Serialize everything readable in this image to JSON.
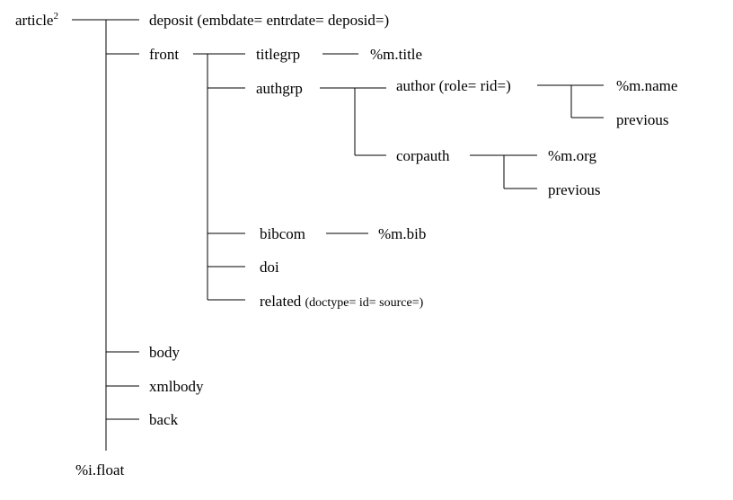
{
  "diagram": {
    "nodes": {
      "article": "article",
      "article_sup": "2",
      "deposit": "deposit (embdate= entrdate= deposid=)",
      "front": "front",
      "titlegrp": "titlegrp",
      "m_title": "%m.title",
      "authgrp": "authgrp",
      "author": "author (role= rid=)",
      "m_name": "%m.name",
      "previous_1": "previous",
      "corpauth": "corpauth",
      "m_org": "%m.org",
      "previous_2": "previous",
      "bibcom": "bibcom",
      "m_bib": "%m.bib",
      "doi": "doi",
      "related": "related",
      "related_attrs": "(doctype= id= source=)",
      "body": "body",
      "xmlbody": "xmlbody",
      "back": "back",
      "i_float": "%i.float"
    }
  }
}
